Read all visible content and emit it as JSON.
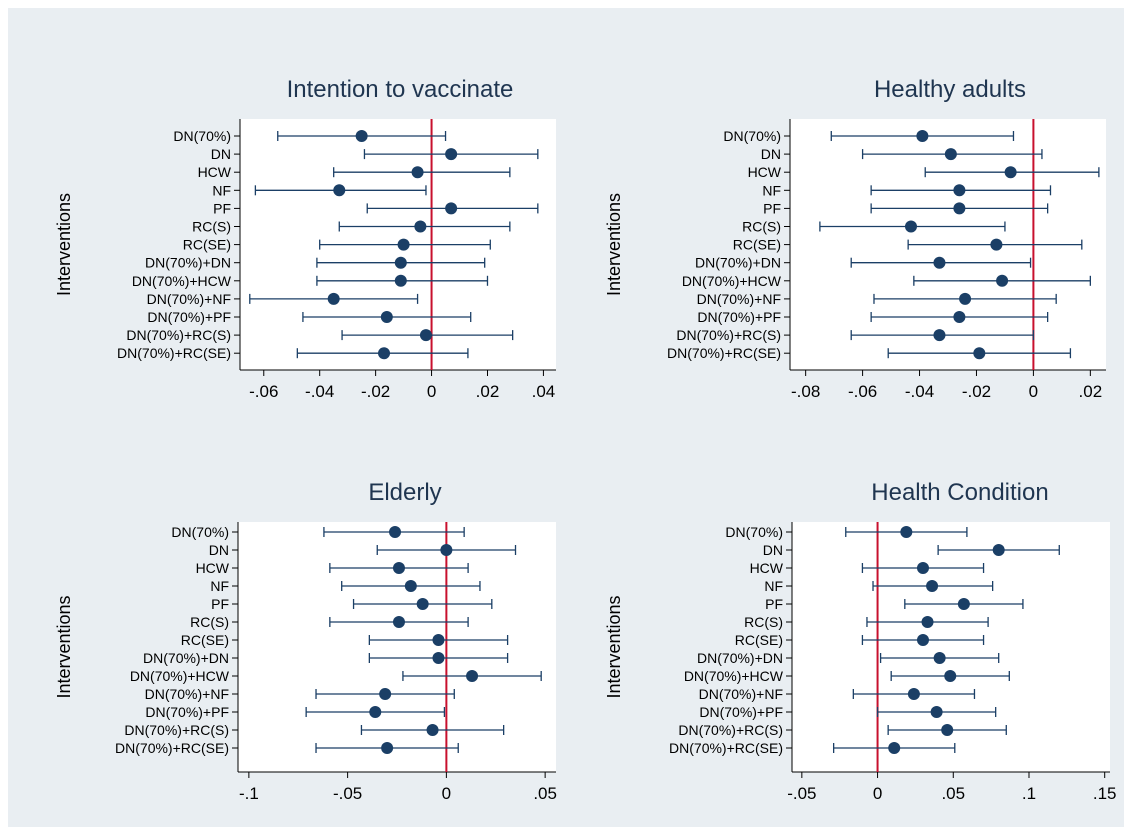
{
  "colors": {
    "outer_background": "#e9eef2",
    "plot_background": "#ffffff",
    "marker": "#1b3f66",
    "ci_line": "#1b3f66",
    "zero_line": "#c8102e",
    "title": "#1f3550"
  },
  "chart_data": [
    {
      "type": "scatter",
      "title": "Intention to vaccinate",
      "ylabel": "Interventions",
      "xlabel": "",
      "categories": [
        "DN(70%)",
        "DN",
        "HCW",
        "NF",
        "PF",
        "RC(S)",
        "RC(SE)",
        "DN(70%)+DN",
        "DN(70%)+HCW",
        "DN(70%)+NF",
        "DN(70%)+PF",
        "DN(70%)+RC(S)",
        "DN(70%)+RC(SE)"
      ],
      "estimate": [
        -0.025,
        0.007,
        -0.005,
        -0.033,
        0.007,
        -0.004,
        -0.01,
        -0.011,
        -0.011,
        -0.035,
        -0.016,
        -0.002,
        -0.017
      ],
      "ci_low": [
        -0.055,
        -0.024,
        -0.035,
        -0.063,
        -0.023,
        -0.033,
        -0.04,
        -0.041,
        -0.041,
        -0.065,
        -0.046,
        -0.032,
        -0.048
      ],
      "ci_high": [
        0.005,
        0.038,
        0.028,
        -0.002,
        0.038,
        0.028,
        0.021,
        0.019,
        0.02,
        -0.005,
        0.014,
        0.029,
        0.013
      ],
      "x_ticks": [
        -0.06,
        -0.04,
        -0.02,
        0,
        0.02,
        0.04
      ],
      "x_tick_labels": [
        "-.06",
        "-.04",
        "-.02",
        "0",
        ".02",
        ".04"
      ],
      "xlim": [
        -0.0685,
        0.0445
      ],
      "reference_line": 0,
      "grid": false,
      "legend": "none"
    },
    {
      "type": "scatter",
      "title": "Healthy adults",
      "ylabel": "Interventions",
      "xlabel": "",
      "categories": [
        "DN(70%)",
        "DN",
        "HCW",
        "NF",
        "PF",
        "RC(S)",
        "RC(SE)",
        "DN(70%)+DN",
        "DN(70%)+HCW",
        "DN(70%)+NF",
        "DN(70%)+PF",
        "DN(70%)+RC(S)",
        "DN(70%)+RC(SE)"
      ],
      "estimate": [
        -0.039,
        -0.029,
        -0.008,
        -0.026,
        -0.026,
        -0.043,
        -0.013,
        -0.033,
        -0.011,
        -0.024,
        -0.026,
        -0.033,
        -0.019
      ],
      "ci_low": [
        -0.071,
        -0.06,
        -0.038,
        -0.057,
        -0.057,
        -0.075,
        -0.044,
        -0.064,
        -0.042,
        -0.056,
        -0.057,
        -0.064,
        -0.051
      ],
      "ci_high": [
        -0.007,
        0.003,
        0.023,
        0.006,
        0.005,
        -0.01,
        0.017,
        -0.001,
        0.02,
        0.008,
        0.005,
        0.0,
        0.013
      ],
      "x_ticks": [
        -0.08,
        -0.06,
        -0.04,
        -0.02,
        0,
        0.02
      ],
      "x_tick_labels": [
        "-.08",
        "-.06",
        "-.04",
        "-.02",
        "0",
        ".02"
      ],
      "xlim": [
        -0.0855,
        0.0255
      ],
      "reference_line": 0,
      "grid": false,
      "legend": "none"
    },
    {
      "type": "scatter",
      "title": "Elderly",
      "ylabel": "Interventions",
      "xlabel": "",
      "categories": [
        "DN(70%)",
        "DN",
        "HCW",
        "NF",
        "PF",
        "RC(S)",
        "RC(SE)",
        "DN(70%)+DN",
        "DN(70%)+HCW",
        "DN(70%)+NF",
        "DN(70%)+PF",
        "DN(70%)+RC(S)",
        "DN(70%)+RC(SE)"
      ],
      "estimate": [
        -0.026,
        0.0,
        -0.024,
        -0.018,
        -0.012,
        -0.024,
        -0.004,
        -0.004,
        0.013,
        -0.031,
        -0.036,
        -0.007,
        -0.03
      ],
      "ci_low": [
        -0.062,
        -0.035,
        -0.059,
        -0.053,
        -0.047,
        -0.059,
        -0.039,
        -0.039,
        -0.022,
        -0.066,
        -0.071,
        -0.043,
        -0.066
      ],
      "ci_high": [
        0.009,
        0.035,
        0.011,
        0.017,
        0.023,
        0.011,
        0.031,
        0.031,
        0.048,
        0.004,
        -0.001,
        0.029,
        0.006
      ],
      "x_ticks": [
        -0.1,
        -0.05,
        0,
        0.05
      ],
      "x_tick_labels": [
        "-.1",
        "-.05",
        "0",
        ".05"
      ],
      "xlim": [
        -0.1055,
        0.0555
      ],
      "reference_line": 0,
      "grid": false,
      "legend": "none"
    },
    {
      "type": "scatter",
      "title": "Health Condition",
      "ylabel": "Interventions",
      "xlabel": "",
      "categories": [
        "DN(70%)",
        "DN",
        "HCW",
        "NF",
        "PF",
        "RC(S)",
        "RC(SE)",
        "DN(70%)+DN",
        "DN(70%)+HCW",
        "DN(70%)+NF",
        "DN(70%)+PF",
        "DN(70%)+RC(S)",
        "DN(70%)+RC(SE)"
      ],
      "estimate": [
        0.019,
        0.08,
        0.03,
        0.036,
        0.057,
        0.033,
        0.03,
        0.041,
        0.048,
        0.024,
        0.039,
        0.046,
        0.011
      ],
      "ci_low": [
        -0.021,
        0.04,
        -0.01,
        -0.003,
        0.018,
        -0.007,
        -0.01,
        0.002,
        0.009,
        -0.016,
        0.0,
        0.007,
        -0.029
      ],
      "ci_high": [
        0.059,
        0.12,
        0.07,
        0.076,
        0.096,
        0.073,
        0.07,
        0.08,
        0.087,
        0.064,
        0.078,
        0.085,
        0.051
      ],
      "x_ticks": [
        -0.05,
        0,
        0.05,
        0.1,
        0.15
      ],
      "x_tick_labels": [
        "-.05",
        "0",
        ".05",
        ".1",
        ".15"
      ],
      "xlim": [
        -0.0565,
        0.1535
      ],
      "reference_line": 0,
      "grid": false,
      "legend": "none"
    }
  ]
}
